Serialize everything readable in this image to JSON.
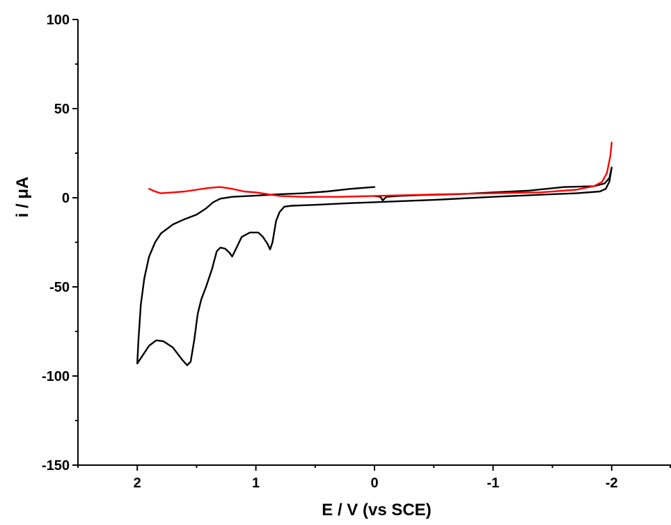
{
  "chart_data": {
    "type": "line",
    "title": "",
    "xlabel": "E / V (vs SCE)",
    "ylabel": "i / μA",
    "x_reversed": true,
    "xlim": [
      2.5,
      -2.5
    ],
    "ylim": [
      -150,
      100
    ],
    "x_ticks": [
      2,
      1,
      0,
      -1,
      -2
    ],
    "x_tick_labels": [
      "2",
      "1",
      "0",
      "-1",
      "-2"
    ],
    "x_minor_ticks": [
      2.5,
      1.5,
      0.5,
      -0.5,
      -1.5,
      -2.5
    ],
    "y_ticks": [
      100,
      50,
      0,
      -50,
      -100,
      -150
    ],
    "y_tick_labels": [
      "100",
      "50",
      "0",
      "-50",
      "-100",
      "-150"
    ],
    "grid": false,
    "legend": "none",
    "series": [
      {
        "color": "#000000",
        "points": [
          [
            0.0,
            6
          ],
          [
            0.2,
            5
          ],
          [
            0.4,
            3.5
          ],
          [
            0.6,
            2.5
          ],
          [
            0.8,
            2
          ],
          [
            1.0,
            1.2
          ],
          [
            1.2,
            0.5
          ],
          [
            1.3,
            -0.5
          ],
          [
            1.36,
            -2.5
          ],
          [
            1.42,
            -6
          ],
          [
            1.5,
            -9.5
          ],
          [
            1.6,
            -12
          ],
          [
            1.7,
            -15
          ],
          [
            1.8,
            -20
          ],
          [
            1.85,
            -25
          ],
          [
            1.9,
            -33
          ],
          [
            1.94,
            -45
          ],
          [
            1.97,
            -60
          ],
          [
            1.99,
            -80
          ],
          [
            2.0,
            -93
          ],
          [
            1.95,
            -88
          ],
          [
            1.9,
            -83
          ],
          [
            1.84,
            -80
          ],
          [
            1.78,
            -80.5
          ],
          [
            1.7,
            -84
          ],
          [
            1.62,
            -91
          ],
          [
            1.58,
            -94
          ],
          [
            1.55,
            -92
          ],
          [
            1.52,
            -80
          ],
          [
            1.49,
            -65
          ],
          [
            1.46,
            -57
          ],
          [
            1.42,
            -50
          ],
          [
            1.37,
            -40
          ],
          [
            1.33,
            -30
          ],
          [
            1.3,
            -28
          ],
          [
            1.26,
            -28.5
          ],
          [
            1.22,
            -31
          ],
          [
            1.2,
            -33
          ],
          [
            1.17,
            -29
          ],
          [
            1.12,
            -22
          ],
          [
            1.05,
            -19.5
          ],
          [
            0.98,
            -19.5
          ],
          [
            0.94,
            -22
          ],
          [
            0.9,
            -26
          ],
          [
            0.88,
            -29
          ],
          [
            0.86,
            -25
          ],
          [
            0.83,
            -13
          ],
          [
            0.8,
            -8
          ],
          [
            0.76,
            -5
          ],
          [
            0.7,
            -4.5
          ],
          [
            0.5,
            -4
          ],
          [
            0.2,
            -3
          ],
          [
            0.0,
            -2.5
          ],
          [
            -0.2,
            -2
          ],
          [
            -0.5,
            -1.2
          ],
          [
            -1.0,
            0.5
          ],
          [
            -1.5,
            2
          ],
          [
            -1.7,
            2.5
          ],
          [
            -1.9,
            3.5
          ],
          [
            -1.95,
            5
          ],
          [
            -1.98,
            9
          ],
          [
            -2.0,
            17
          ],
          [
            -1.98,
            11
          ],
          [
            -1.94,
            8
          ],
          [
            -1.85,
            6.5
          ],
          [
            -1.6,
            6
          ],
          [
            -1.3,
            4
          ],
          [
            -1.0,
            3
          ],
          [
            -0.7,
            2
          ],
          [
            -0.4,
            1.5
          ],
          [
            -0.2,
            1
          ],
          [
            -0.1,
            0.5
          ],
          [
            -0.07,
            -1.5
          ],
          [
            -0.05,
            0.5
          ],
          [
            0.0,
            1
          ]
        ]
      },
      {
        "color": "#ff0000",
        "points": [
          [
            1.9,
            5
          ],
          [
            1.85,
            3.5
          ],
          [
            1.8,
            2.5
          ],
          [
            1.7,
            3
          ],
          [
            1.6,
            3.5
          ],
          [
            1.5,
            4.5
          ],
          [
            1.4,
            5.5
          ],
          [
            1.3,
            6
          ],
          [
            1.2,
            5
          ],
          [
            1.1,
            3.5
          ],
          [
            1.0,
            3
          ],
          [
            0.9,
            2
          ],
          [
            0.8,
            1
          ],
          [
            0.6,
            0.5
          ],
          [
            0.3,
            0.5
          ],
          [
            0.0,
            1
          ],
          [
            -0.3,
            1.5
          ],
          [
            -0.6,
            2
          ],
          [
            -1.0,
            2.5
          ],
          [
            -1.4,
            3
          ],
          [
            -1.7,
            4.5
          ],
          [
            -1.85,
            6.5
          ],
          [
            -1.92,
            9
          ],
          [
            -1.96,
            14
          ],
          [
            -1.99,
            24
          ],
          [
            -2.0,
            31
          ]
        ]
      }
    ]
  }
}
